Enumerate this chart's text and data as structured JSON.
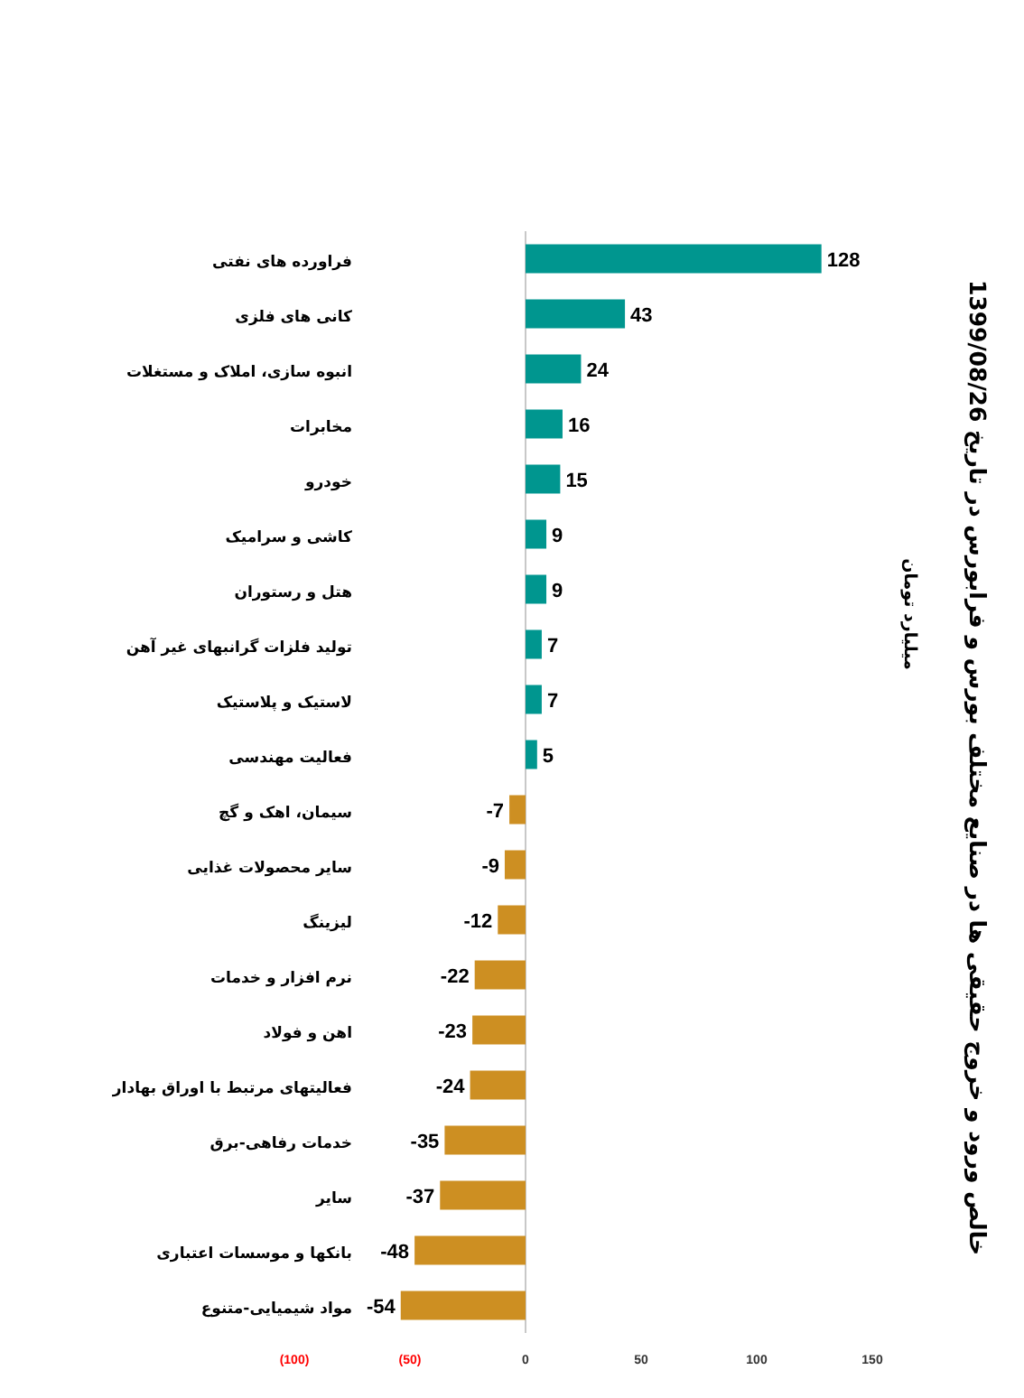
{
  "chart_data": {
    "type": "bar",
    "orientation": "horizontal",
    "title": "خالص ورود و خروج حقیقی ها در صنایع مختلف  بورس و فرابورس در تاریخ 1399/08/26",
    "annotations": [
      "میلیارد تومان"
    ],
    "categories": [
      "فراورده های نفتی",
      "کانی های فلزی",
      "انبوه سازی، املاک و مستغلات",
      "مخابرات",
      "خودرو",
      "کاشی و سرامیک",
      "هتل و رستوران",
      "تولید فلزات گرانبهای غیر آهن",
      "لاستیک و پلاستیک",
      "فعالیت مهندسی",
      "سیمان، اهک و گچ",
      "سایر محصولات غذایی",
      "لیزینگ",
      "نرم افزار و خدمات",
      "اهن و فولاد",
      "فعالیتهای مرتبط با اوراق بهادار",
      "خدمات رفاهی-برق",
      "سایر",
      "بانکها و موسسات اعتباری",
      "مواد شیمیایی-متنوع"
    ],
    "values": [
      128,
      43,
      24,
      16,
      15,
      9,
      9,
      7,
      7,
      5,
      -7,
      -9,
      -12,
      -22,
      -23,
      -24,
      -35,
      -37,
      -48,
      -54
    ],
    "colors": [
      "#00968f",
      "#00968f",
      "#00968f",
      "#00968f",
      "#00968f",
      "#00968f",
      "#00968f",
      "#00968f",
      "#00968f",
      "#00968f",
      "#cd8f22",
      "#cd8f22",
      "#cd8f22",
      "#cd8f22",
      "#cd8f22",
      "#cd8f22",
      "#cd8f22",
      "#cd8f22",
      "#cd8f22",
      "#cd8f22"
    ],
    "xlim": [
      -100,
      150
    ],
    "xticks": [
      {
        "value": -100,
        "label": "(100)"
      },
      {
        "value": -50,
        "label": "(50)"
      },
      0,
      50,
      100,
      150
    ],
    "data_labels": true
  }
}
